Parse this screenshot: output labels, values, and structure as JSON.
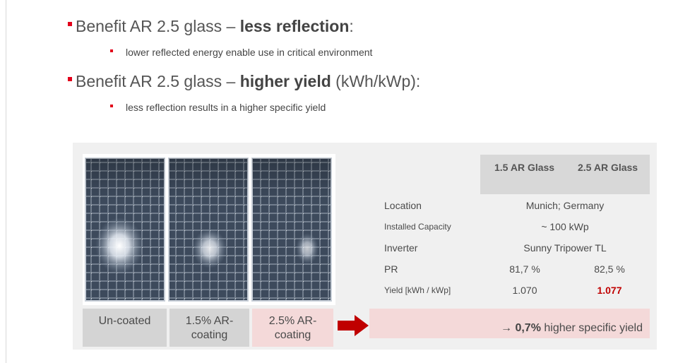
{
  "bullets": [
    {
      "text_prefix": "Benefit AR 2.5 glass – ",
      "text_bold": "less reflection",
      "text_suffix": ":",
      "sub": "lower reflected energy enable use in critical environment"
    },
    {
      "text_prefix": "Benefit AR 2.5 glass – ",
      "text_bold": "higher yield",
      "text_suffix": " (kWh/kWp):",
      "sub": "less reflection results in a higher specific yield"
    }
  ],
  "panel_labels": [
    "Un-coated",
    "1.5% AR-coating",
    "2.5% AR-coating"
  ],
  "table": {
    "headers": [
      "1.5 AR Glass",
      "2.5 AR Glass"
    ],
    "rows": [
      {
        "label": "Location",
        "span": "Munich; Germany"
      },
      {
        "label": "Installed Capacity",
        "span": "~ 100 kWp"
      },
      {
        "label": "Inverter",
        "span": "Sunny Tripower TL"
      },
      {
        "label": "PR",
        "v1": "81,7 %",
        "v2": "82,5 %"
      },
      {
        "label": "Yield [kWh / kWp]",
        "v1": "1.070",
        "v2": "1.077"
      }
    ]
  },
  "result": {
    "arrow": "→ ",
    "bold": "0,7%",
    "rest": " higher specific yield"
  },
  "colors": {
    "accent_red": "#e2001a",
    "highlight_red": "#c00000",
    "pink": "#f4d9d9"
  }
}
